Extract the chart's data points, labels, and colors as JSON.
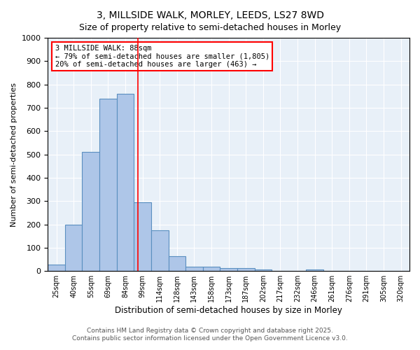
{
  "title1": "3, MILLSIDE WALK, MORLEY, LEEDS, LS27 8WD",
  "title2": "Size of property relative to semi-detached houses in Morley",
  "xlabel": "Distribution of semi-detached houses by size in Morley",
  "ylabel": "Number of semi-detached properties",
  "categories": [
    "25sqm",
    "40sqm",
    "55sqm",
    "69sqm",
    "84sqm",
    "99sqm",
    "114sqm",
    "128sqm",
    "143sqm",
    "158sqm",
    "173sqm",
    "187sqm",
    "202sqm",
    "217sqm",
    "232sqm",
    "246sqm",
    "261sqm",
    "276sqm",
    "291sqm",
    "305sqm",
    "320sqm"
  ],
  "values": [
    28,
    200,
    510,
    740,
    760,
    295,
    175,
    65,
    20,
    20,
    13,
    13,
    7,
    0,
    0,
    8,
    0,
    0,
    0,
    0,
    0
  ],
  "bar_color": "#aec6e8",
  "bar_edgecolor": "#5a8fc0",
  "background_color": "#e8f0f8",
  "red_line_x": 4.72,
  "annotation_title": "3 MILLSIDE WALK: 88sqm",
  "annotation_line1": "← 79% of semi-detached houses are smaller (1,805)",
  "annotation_line2": "20% of semi-detached houses are larger (463) →",
  "footer1": "Contains HM Land Registry data © Crown copyright and database right 2025.",
  "footer2": "Contains public sector information licensed under the Open Government Licence v3.0.",
  "ylim": [
    0,
    1000
  ],
  "yticks": [
    0,
    100,
    200,
    300,
    400,
    500,
    600,
    700,
    800,
    900,
    1000
  ]
}
